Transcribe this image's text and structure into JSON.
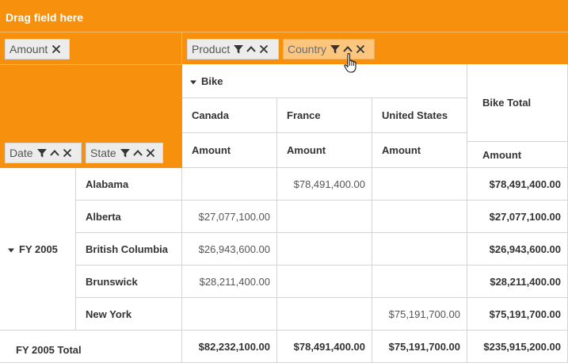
{
  "drag_area": {
    "label": "Drag field here"
  },
  "values_area": {
    "chips": [
      {
        "label": "Amount"
      }
    ]
  },
  "columns_area": {
    "chips": [
      {
        "label": "Product"
      },
      {
        "label": "Country"
      }
    ]
  },
  "rows_area": {
    "chips": [
      {
        "label": "Date"
      },
      {
        "label": "State"
      }
    ]
  },
  "icons": {
    "filter": "filter-icon",
    "sort": "sort-ascending-icon",
    "remove": "close-icon",
    "expand": "collapse-triangle-icon",
    "cursor": "hand-pointer-cursor-icon"
  },
  "colors": {
    "header_orange": "#f7910d",
    "chip_bg": "#ececec",
    "chip_hover": "#fdc67e",
    "grid_line": "#d4d4d4"
  },
  "grid": {
    "column_group": "Bike",
    "column_total": "Bike Total",
    "countries": [
      "Canada",
      "France",
      "United States"
    ],
    "measure": "Amount",
    "row_group": "FY 2005",
    "row_total": "FY 2005 Total",
    "rows": [
      {
        "state": "Alabama",
        "canada": "",
        "france": "$78,491,400.00",
        "united_states": "",
        "total": "$78,491,400.00"
      },
      {
        "state": "Alberta",
        "canada": "$27,077,100.00",
        "france": "",
        "united_states": "",
        "total": "$27,077,100.00"
      },
      {
        "state": "British Columbia",
        "canada": "$26,943,600.00",
        "france": "",
        "united_states": "",
        "total": "$26,943,600.00"
      },
      {
        "state": "Brunswick",
        "canada": "$28,211,400.00",
        "france": "",
        "united_states": "",
        "total": "$28,211,400.00"
      },
      {
        "state": "New York",
        "canada": "",
        "france": "",
        "united_states": "$75,191,700.00",
        "total": "$75,191,700.00"
      }
    ],
    "totals": {
      "canada": "$82,232,100.00",
      "france": "$78,491,400.00",
      "united_states": "$75,191,700.00",
      "total": "$235,915,200.00"
    }
  }
}
